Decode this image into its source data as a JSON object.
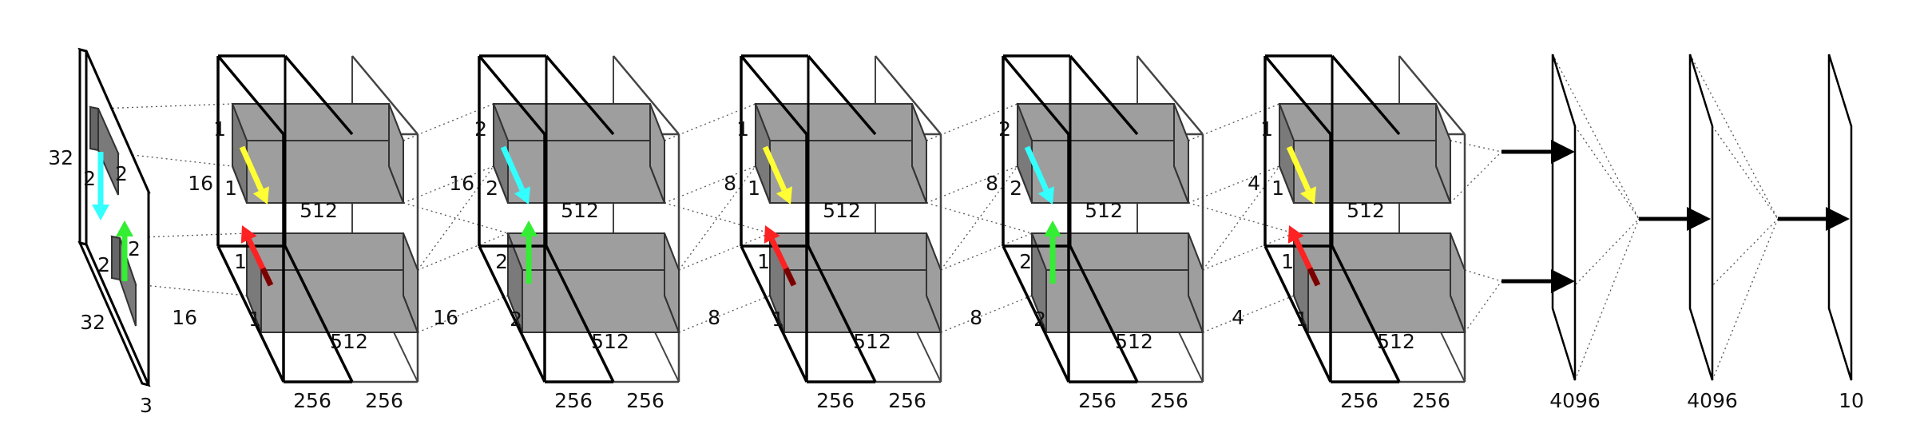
{
  "colors": {
    "background": "#ffffff",
    "outline": "#000000",
    "box_fill": "#9e9e9e",
    "box_shade": "#7a7a7a",
    "arrow_yellow": "#ffff33",
    "arrow_cyan": "#33ffff",
    "arrow_green": "#33ee33",
    "arrow_red": "#ff2222",
    "arrow_dark_red": "#7a0000",
    "flow_arrow": "#000000"
  },
  "input": {
    "height_label": "32",
    "width_label": "32",
    "channels_label": "3",
    "top_kernel_h": "2",
    "top_kernel_w": "2",
    "bottom_kernel_h": "2",
    "bottom_kernel_w": "2",
    "top_arrow_color": "arrow_cyan",
    "bottom_arrow_color": "arrow_green"
  },
  "conv_blocks": [
    {
      "spatial_label": "16",
      "upper_kernel_a": "1",
      "upper_kernel_b": "1",
      "upper_depth": "512",
      "lower_kernel_a": "1",
      "lower_kernel_b": "1",
      "lower_depth": "512",
      "lower_spatial_label": "16",
      "width_left": "256",
      "width_right": "256",
      "upper_arrow_color": "arrow_yellow",
      "lower_arrow_color": "arrow_red"
    },
    {
      "spatial_label": "16",
      "upper_kernel_a": "2",
      "upper_kernel_b": "2",
      "upper_depth": "512",
      "lower_kernel_a": "2",
      "lower_kernel_b": "2",
      "lower_depth": "512",
      "lower_spatial_label": "16",
      "width_left": "256",
      "width_right": "256",
      "upper_arrow_color": "arrow_cyan",
      "lower_arrow_color": "arrow_green"
    },
    {
      "spatial_label": "8",
      "upper_kernel_a": "1",
      "upper_kernel_b": "1",
      "upper_depth": "512",
      "lower_kernel_a": "1",
      "lower_kernel_b": "1",
      "lower_depth": "512",
      "lower_spatial_label": "8",
      "width_left": "256",
      "width_right": "256",
      "upper_arrow_color": "arrow_yellow",
      "lower_arrow_color": "arrow_red"
    },
    {
      "spatial_label": "8",
      "upper_kernel_a": "2",
      "upper_kernel_b": "2",
      "upper_depth": "512",
      "lower_kernel_a": "2",
      "lower_kernel_b": "2",
      "lower_depth": "512",
      "lower_spatial_label": "8",
      "width_left": "256",
      "width_right": "256",
      "upper_arrow_color": "arrow_cyan",
      "lower_arrow_color": "arrow_green"
    },
    {
      "spatial_label": "4",
      "upper_kernel_a": "1",
      "upper_kernel_b": "1",
      "upper_depth": "512",
      "lower_kernel_a": "1",
      "lower_kernel_b": "1",
      "lower_depth": "512",
      "lower_spatial_label": "4",
      "width_left": "256",
      "width_right": "256",
      "upper_arrow_color": "arrow_yellow",
      "lower_arrow_color": "arrow_red"
    }
  ],
  "dense_layers": [
    {
      "units_label": "4096"
    },
    {
      "units_label": "4096"
    },
    {
      "units_label": "10"
    }
  ]
}
